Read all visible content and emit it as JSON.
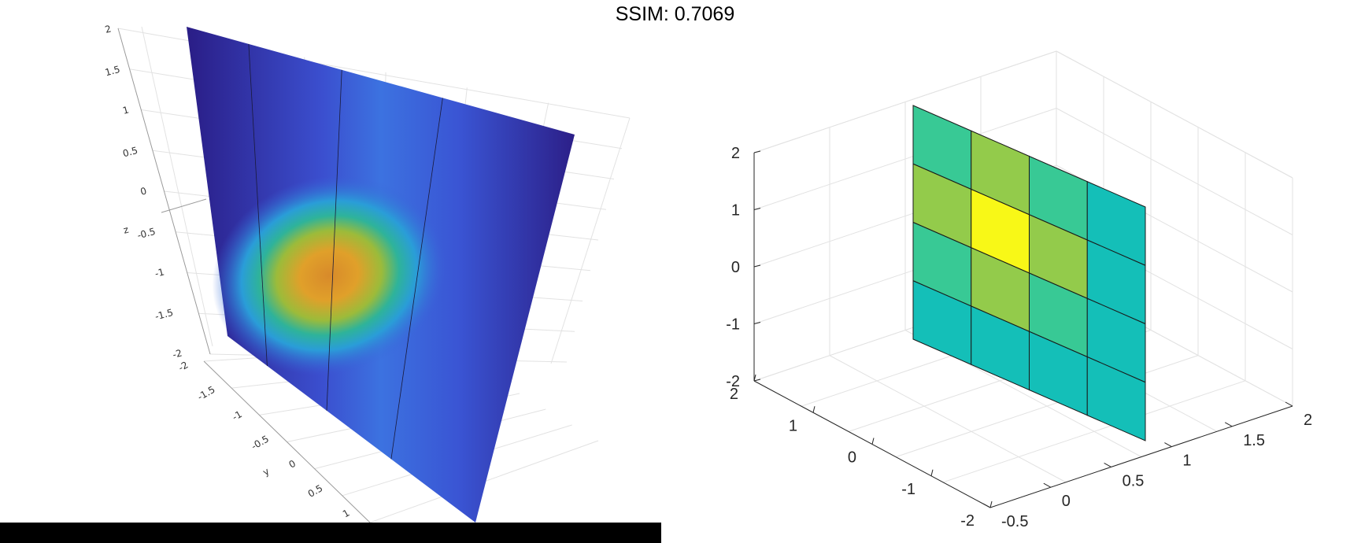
{
  "title": "SSIM: 0.7069",
  "chart_data": [
    {
      "type": "surface",
      "subtitle_axes": "left",
      "colormap": "parula",
      "z_axis_label": "z",
      "y_axis_label": "y",
      "z_ticks": [
        "-2",
        "-1.5",
        "-1",
        "-0.5",
        "0",
        "0.5",
        "1",
        "1.5",
        "2"
      ],
      "y_ticks": [
        "-2",
        "-1.5",
        "-1",
        "-0.5",
        "0",
        "0.5",
        "1"
      ],
      "mesh_columns": 5,
      "peak_value": 1.0,
      "grid": true
    },
    {
      "type": "heatmap",
      "subtitle_axes": "right",
      "colormap": "parula",
      "x_ticks": [
        "-0.5",
        "0",
        "0.5",
        "1",
        "1.5",
        "2"
      ],
      "y_ticks": [
        "-2",
        "-1",
        "0",
        "1",
        "2"
      ],
      "z_ticks": [
        "-2",
        "-1",
        "0",
        "1",
        "2"
      ],
      "grid_values": [
        [
          0.55,
          0.75,
          0.55,
          0.35
        ],
        [
          0.75,
          1.0,
          0.75,
          0.35
        ],
        [
          0.55,
          0.75,
          0.55,
          0.35
        ],
        [
          0.35,
          0.35,
          0.35,
          0.35
        ]
      ],
      "colors": {
        "low": "#14bfb8",
        "mid": "#38c995",
        "high": "#93cb4b",
        "peak": "#f8f817"
      },
      "grid": true
    }
  ]
}
